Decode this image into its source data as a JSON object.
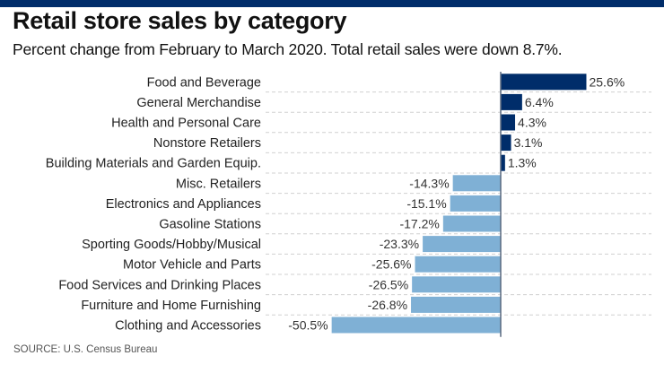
{
  "header": {
    "title": "Retail store sales by category",
    "subtitle": "Percent change from February to March 2020. Total retail sales were down 8.7%."
  },
  "footer": {
    "source": "SOURCE: U.S. Census Bureau"
  },
  "colors": {
    "brand_bar": "#002d6a",
    "positive": "#002d6a",
    "negative": "#7fb0d5"
  },
  "chart_data": {
    "type": "bar",
    "orientation": "horizontal",
    "title": "Retail store sales by category",
    "subtitle": "Percent change from February to March 2020. Total retail sales were down 8.7%.",
    "xlabel": "",
    "ylabel": "",
    "unit": "%",
    "xlim": [
      -50.5,
      25.6
    ],
    "grid": true,
    "legend": "none",
    "categories": [
      "Food and Beverage",
      "General Merchandise",
      "Health and Personal Care",
      "Nonstore Retailers",
      "Building Materials and Garden Equip.",
      "Misc. Retailers",
      "Electronics and Appliances",
      "Gasoline Stations",
      "Sporting Goods/Hobby/Musical",
      "Motor Vehicle and Parts",
      "Food Services and Drinking Places",
      "Furniture and Home Furnishing",
      "Clothing and Accessories"
    ],
    "values": [
      25.6,
      6.4,
      4.3,
      3.1,
      1.3,
      -14.3,
      -15.1,
      -17.2,
      -23.3,
      -25.6,
      -26.5,
      -26.8,
      -50.5
    ],
    "data_labels": [
      "25.6%",
      "6.4%",
      "4.3%",
      "3.1%",
      "1.3%",
      "-14.3%",
      "-15.1%",
      "-17.2%",
      "-23.3%",
      "-25.6%",
      "-26.5%",
      "-26.8%",
      "-50.5%"
    ]
  }
}
